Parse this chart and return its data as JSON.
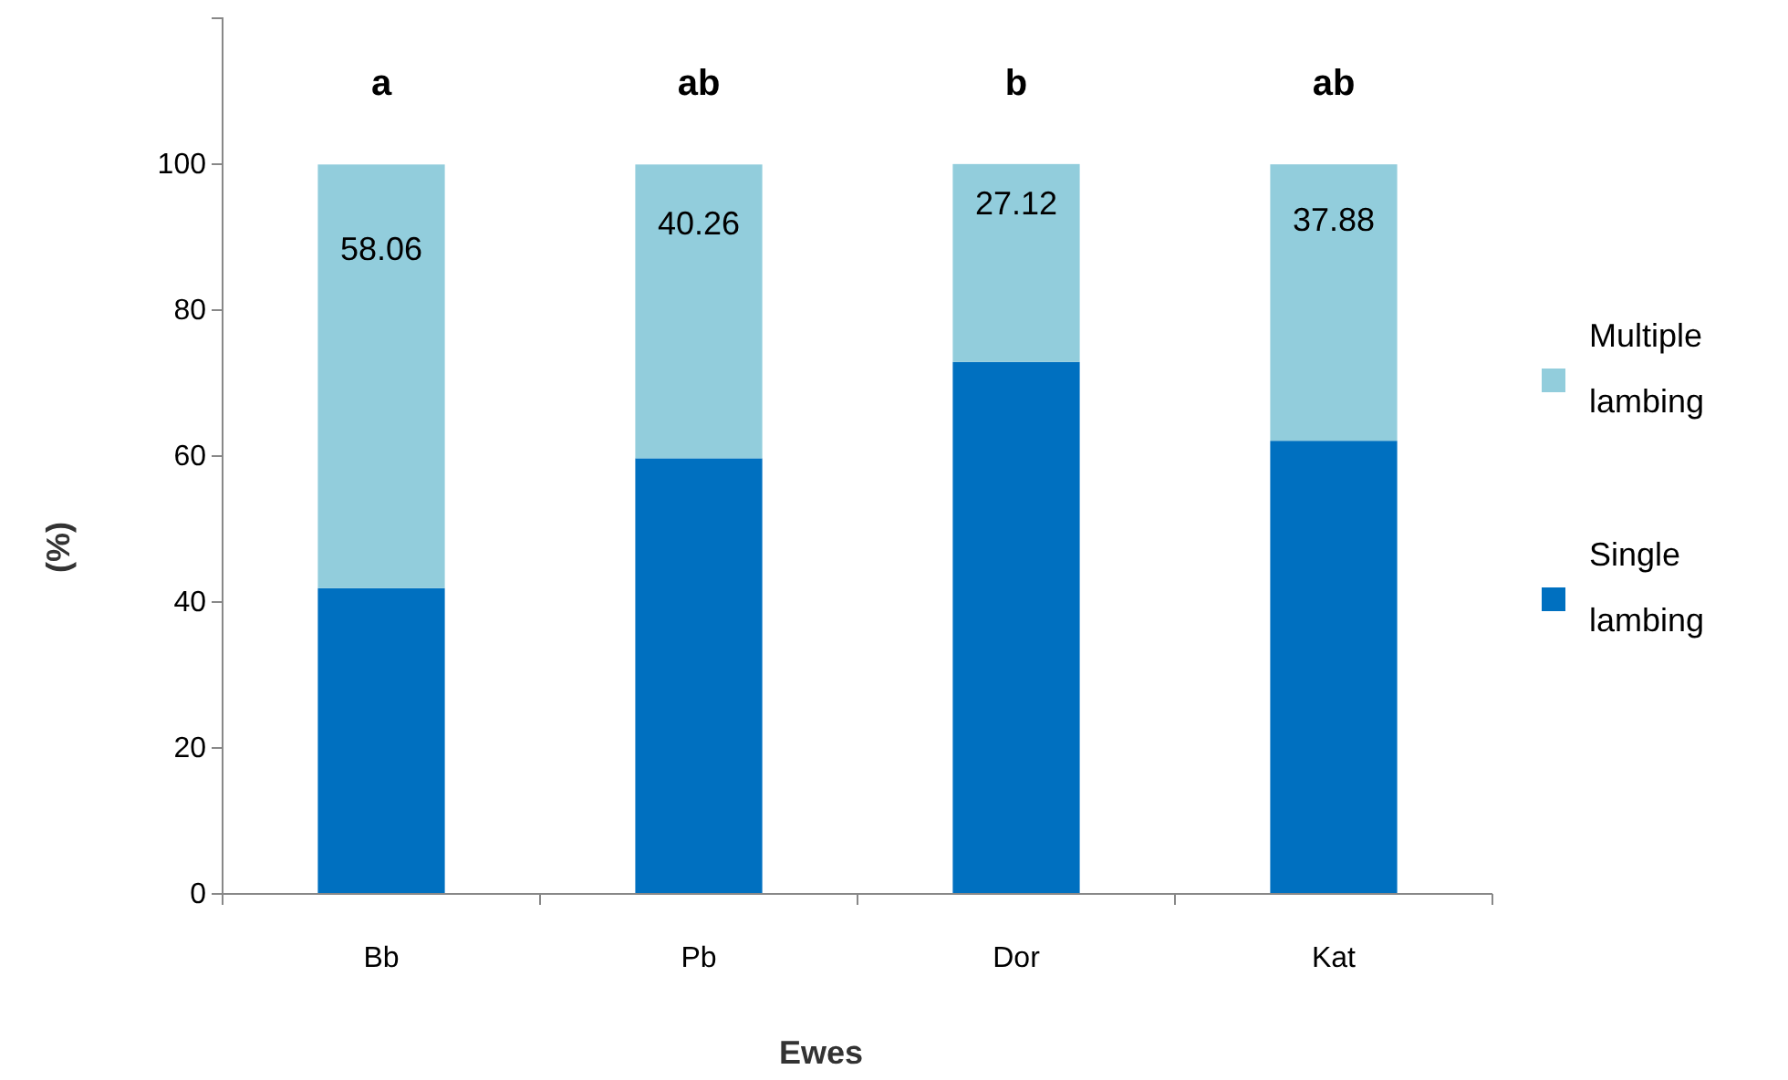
{
  "chart_data": {
    "type": "bar",
    "stacked": true,
    "categories": [
      "Bb",
      "Pb",
      "Dor",
      "Kat"
    ],
    "series": [
      {
        "name": "Single lambing",
        "color": "#0070c0",
        "values": [
          41.9,
          59.7,
          72.9,
          62.1
        ]
      },
      {
        "name": "Multiple lambing",
        "color": "#92cddc",
        "values": [
          58.06,
          40.26,
          27.12,
          37.88
        ],
        "value_labels": [
          "58.06",
          "40.26",
          "27.12",
          "37.88"
        ]
      }
    ],
    "xlabel": "Ewes",
    "ylabel": "(%)",
    "ylim": [
      0,
      120
    ],
    "yticks": [
      0,
      20,
      40,
      60,
      80,
      100
    ],
    "legend": "right",
    "grid": false,
    "annotations": [
      "a",
      "ab",
      "b",
      "ab"
    ]
  }
}
